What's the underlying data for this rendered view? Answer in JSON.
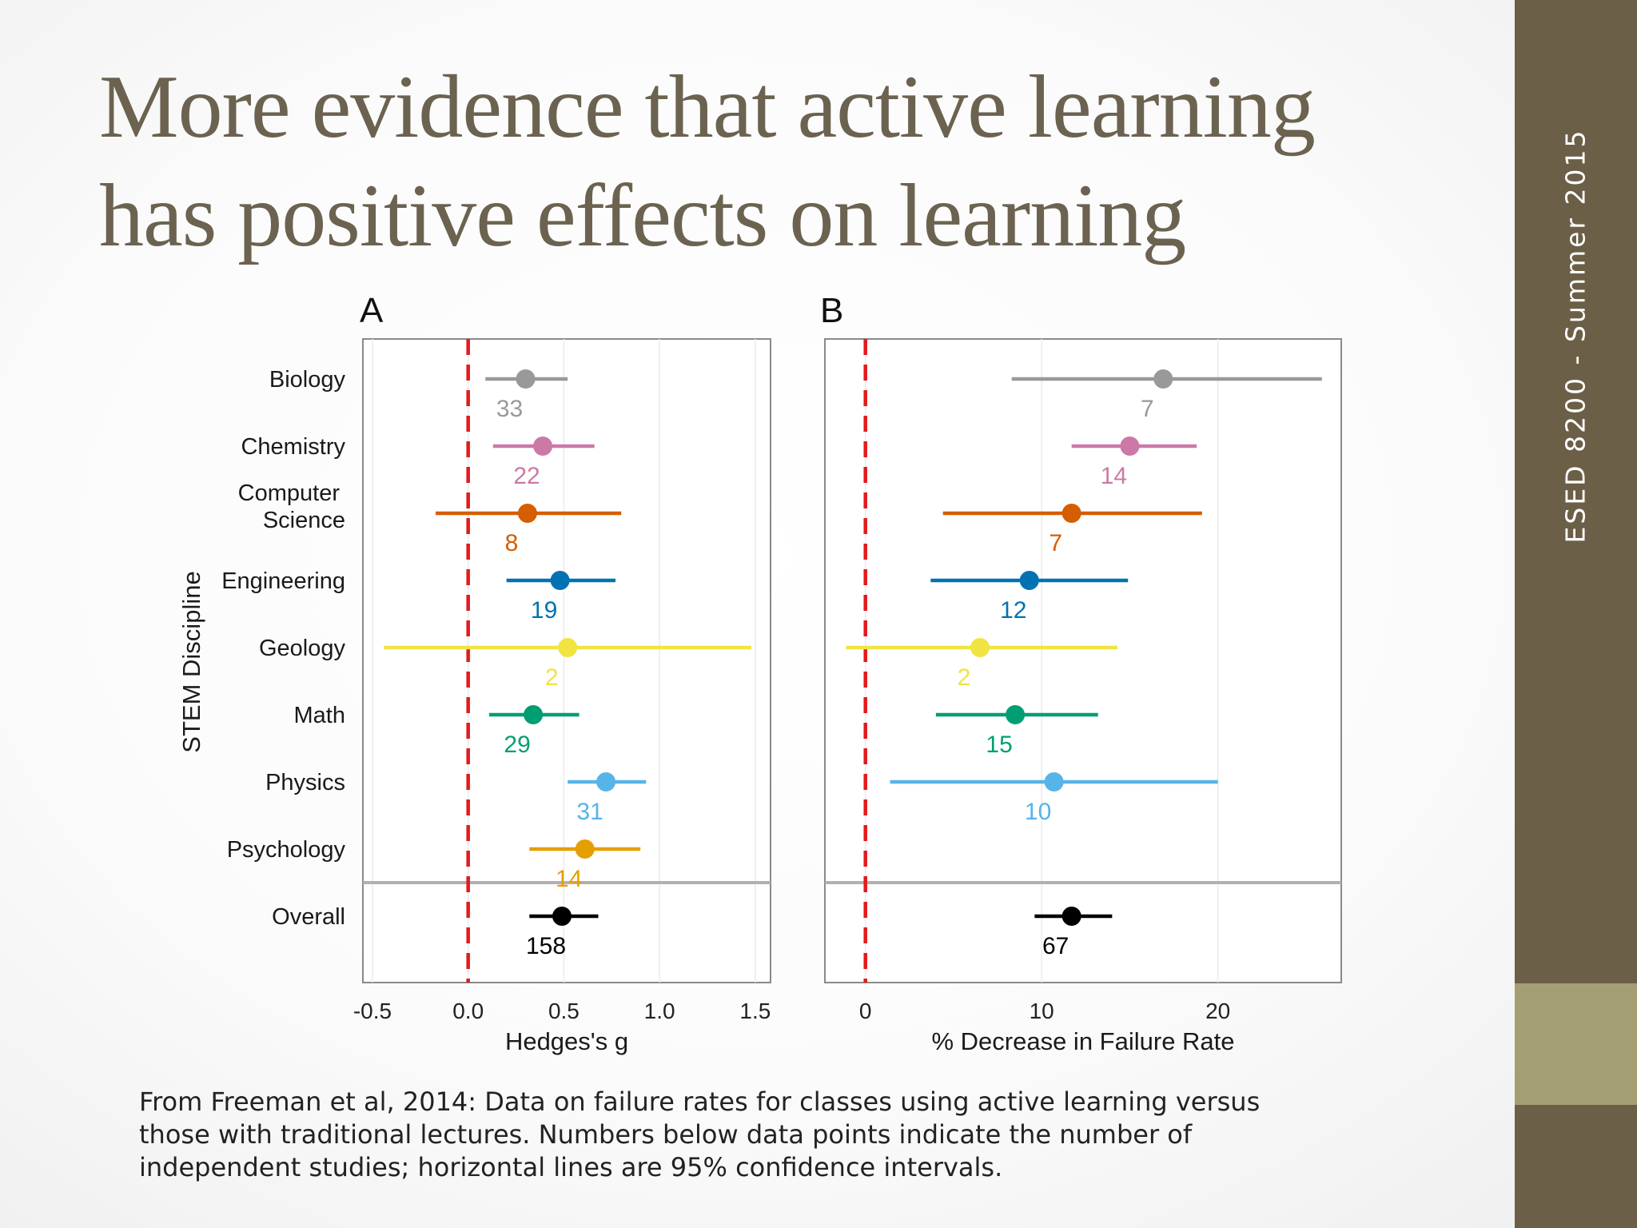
{
  "slide": {
    "title_line1": "More evidence that active learning",
    "title_line2": "has positive effects on learning",
    "sidebar_text": "ESED 8200 - Summer 2015",
    "caption_line1": "From Freeman et al, 2014: Data on failure rates for classes using active learning versus",
    "caption_line2": "those with traditional lectures. Numbers below data points indicate the number of",
    "caption_line3": "independent studies; horizontal lines are 95% confidence intervals."
  },
  "colors": {
    "title": "#6b6250",
    "sidebar": "#6c5f48",
    "sidebar_accent": "#a49e74",
    "reference_line": "#e31a1c"
  },
  "chart_data": [
    {
      "panel": "A",
      "type": "scatter",
      "subtype": "forest-plot",
      "xlabel": "Hedges's g",
      "ylabel": "STEM Discipline",
      "xlim": [
        -0.55,
        1.58
      ],
      "xticks": [
        "-0.5",
        "0.0",
        "0.5",
        "1.0",
        "1.5"
      ],
      "reference_line_x": 0,
      "grid": "vertical",
      "categories": [
        "Biology",
        "Chemistry",
        "Computer Science",
        "Engineering",
        "Geology",
        "Math",
        "Physics",
        "Psychology",
        "Overall"
      ],
      "estimates": [
        0.3,
        0.39,
        0.31,
        0.48,
        0.52,
        0.34,
        0.72,
        0.61,
        0.49
      ],
      "ci_low": [
        0.09,
        0.13,
        -0.17,
        0.2,
        -0.44,
        0.11,
        0.52,
        0.32,
        0.32
      ],
      "ci_high": [
        0.52,
        0.66,
        0.8,
        0.77,
        1.48,
        0.58,
        0.93,
        0.9,
        0.68
      ],
      "n_studies": [
        "33",
        "22",
        "8",
        "19",
        "2",
        "29",
        "31",
        "14",
        "158"
      ],
      "colors": [
        "#999999",
        "#cc79a7",
        "#d55e00",
        "#0072b2",
        "#f0e442",
        "#009e73",
        "#56b4e9",
        "#e69f00",
        "#000000"
      ]
    },
    {
      "panel": "B",
      "type": "scatter",
      "subtype": "forest-plot",
      "xlabel": "% Decrease in Failure Rate",
      "xlim": [
        -2.3,
        27
      ],
      "xticks": [
        "0",
        "10",
        "20"
      ],
      "reference_line_x": 0,
      "grid": "vertical",
      "categories": [
        "Biology",
        "Chemistry",
        "Computer Science",
        "Engineering",
        "Geology",
        "Math",
        "Physics",
        "Psychology",
        "Overall"
      ],
      "estimates": [
        16.9,
        15.0,
        11.7,
        9.3,
        6.5,
        8.5,
        10.7,
        null,
        11.7
      ],
      "ci_low": [
        8.3,
        11.7,
        4.4,
        3.7,
        -1.1,
        4.0,
        1.4,
        null,
        9.6
      ],
      "ci_high": [
        25.9,
        18.8,
        19.1,
        14.9,
        14.3,
        13.2,
        20.0,
        null,
        14.0
      ],
      "n_studies": [
        "7",
        "14",
        "7",
        "12",
        "2",
        "15",
        "10",
        "",
        "67"
      ],
      "colors": [
        "#999999",
        "#cc79a7",
        "#d55e00",
        "#0072b2",
        "#f0e442",
        "#009e73",
        "#56b4e9",
        "#e69f00",
        "#000000"
      ]
    }
  ]
}
